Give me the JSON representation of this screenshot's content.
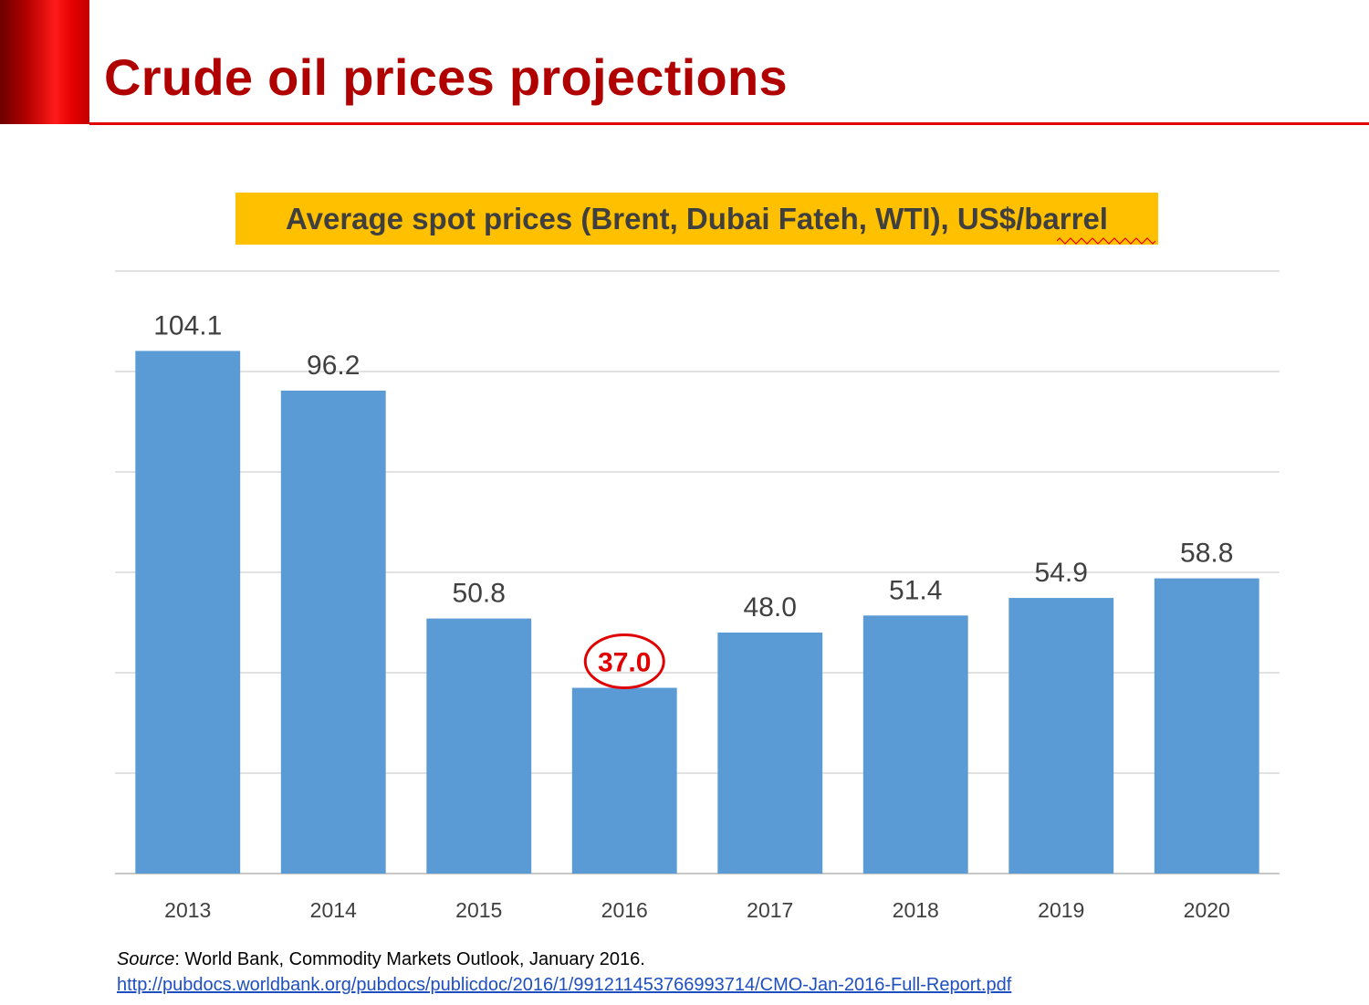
{
  "slide": {
    "title": "Crude oil prices projections",
    "source_label": "Source",
    "source_text": ": World Bank, Commodity Markets Outlook, January 2016.",
    "source_url": "http://pubdocs.worldbank.org/pubdocs/publicdoc/2016/1/991211453766993714/CMO-Jan-2016-Full-Report.pdf"
  },
  "colors": {
    "title": "#b00000",
    "accent": "#e00000",
    "bar": "#5b9bd5",
    "highlight": "#e00000",
    "chart_title_bg": "#ffc000",
    "gridline": "#d9d9d9",
    "label": "#404040",
    "link": "#1f4fbf"
  },
  "chart_data": {
    "type": "bar",
    "title": "Average spot prices (Brent, Dubai Fateh, WTI), US$/barrel",
    "categories": [
      "2013",
      "2014",
      "2015",
      "2016",
      "2017",
      "2018",
      "2019",
      "2020"
    ],
    "values": [
      104.1,
      96.2,
      50.8,
      37.0,
      48.0,
      51.4,
      54.9,
      58.8
    ],
    "data_labels": [
      "104.1",
      "96.2",
      "50.8",
      "37.0",
      "48.0",
      "51.4",
      "54.9",
      "58.8"
    ],
    "highlighted_category": "2016",
    "xlabel": "",
    "ylabel": "",
    "ylim": [
      0,
      120
    ],
    "gridlines": true,
    "y_tick_labels_shown": false,
    "legend": "none"
  }
}
